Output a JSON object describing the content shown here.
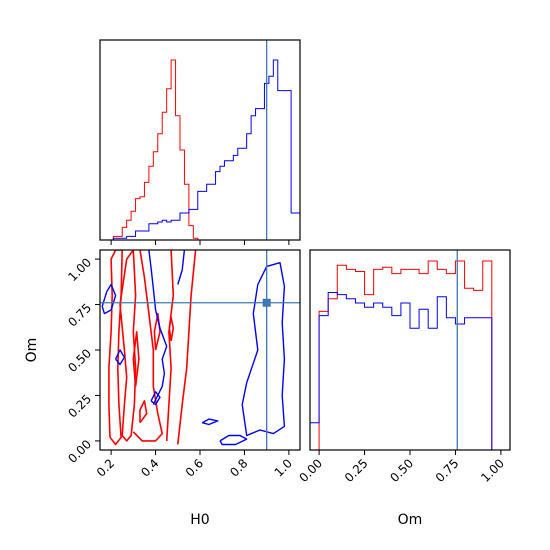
{
  "chart_data": {
    "type": "corner",
    "parameters": [
      "H0",
      "Om"
    ],
    "axis_labels": {
      "H0": "H0",
      "Om": "Om"
    },
    "truth": {
      "H0": 0.9,
      "Om": 0.76
    },
    "colors": {
      "series_a": "#ff0000",
      "series_b": "#0000ff",
      "truth": "#3b7ab5"
    },
    "H0_range": [
      0.15,
      1.05
    ],
    "Om_range": [
      -0.05,
      1.05
    ],
    "Om_hist_xrange": [
      -0.05,
      1.05
    ],
    "H0_ticks": [
      0.2,
      0.4,
      0.6,
      0.8,
      1.0
    ],
    "H0_tick_labels": [
      "0.2",
      "0.4",
      "0.6",
      "0.8",
      "1.0"
    ],
    "Om_ticks": [
      0.0,
      0.25,
      0.5,
      0.75,
      1.0
    ],
    "Om_tick_labels": [
      "0.00",
      "0.25",
      "0.50",
      "0.75",
      "1.00"
    ],
    "hist_H0": {
      "bins": [
        0.15,
        0.17,
        0.19,
        0.21,
        0.23,
        0.25,
        0.27,
        0.29,
        0.31,
        0.33,
        0.35,
        0.37,
        0.39,
        0.41,
        0.43,
        0.45,
        0.47,
        0.49,
        0.51,
        0.53,
        0.55,
        0.57,
        0.59,
        0.61,
        0.63,
        0.65,
        0.67,
        0.69,
        0.71,
        0.73,
        0.75,
        0.77,
        0.79,
        0.81,
        0.83,
        0.85,
        0.87,
        0.89,
        0.91,
        0.93,
        0.95,
        0.97,
        0.99,
        1.01,
        1.03,
        1.05
      ],
      "series_a": [
        0,
        0,
        0,
        0.02,
        0.02,
        0.07,
        0.11,
        0.16,
        0.23,
        0.24,
        0.32,
        0.41,
        0.49,
        0.59,
        0.71,
        0.84,
        1.0,
        0.69,
        0.5,
        0.31,
        0.08,
        0.01,
        0,
        0,
        0,
        0,
        0,
        0,
        0,
        0,
        0,
        0,
        0,
        0,
        0,
        0,
        0,
        0,
        0,
        0,
        0,
        0,
        0,
        0,
        0
      ],
      "series_b": [
        0,
        0,
        0,
        0.01,
        0.01,
        0.01,
        0.02,
        0.02,
        0.05,
        0.05,
        0.05,
        0.09,
        0.09,
        0.1,
        0.11,
        0.1,
        0.11,
        0.11,
        0.15,
        0.15,
        0.17,
        0.17,
        0.27,
        0.27,
        0.31,
        0.31,
        0.38,
        0.41,
        0.44,
        0.44,
        0.47,
        0.51,
        0.51,
        0.59,
        0.69,
        0.73,
        0.73,
        0.87,
        0.91,
        1.0,
        0.83,
        0.83,
        0.83,
        0.15,
        0.15
      ]
    },
    "hist_Om": {
      "bins": [
        -0.05,
        0.0,
        0.05,
        0.1,
        0.15,
        0.2,
        0.25,
        0.3,
        0.35,
        0.4,
        0.45,
        0.5,
        0.55,
        0.6,
        0.65,
        0.7,
        0.75,
        0.8,
        0.85,
        0.9,
        0.95,
        1.0
      ],
      "series_a": [
        0,
        0.66,
        0.72,
        0.88,
        0.86,
        0.85,
        0.74,
        0.86,
        0.87,
        0.84,
        0.86,
        0.86,
        0.84,
        0.9,
        0.86,
        0.84,
        0.9,
        0.77,
        0.76,
        0.9,
        0.0
      ],
      "series_b": [
        0.13,
        0.64,
        0.75,
        0.74,
        0.72,
        0.7,
        0.68,
        0.7,
        0.68,
        0.64,
        0.7,
        0.58,
        0.67,
        0.58,
        0.73,
        0.63,
        0.6,
        0.63,
        0.63,
        0.63,
        0.0
      ]
    },
    "contours": {
      "series_a": [
        [
          [
            0.195,
            0.02
          ],
          [
            0.19,
            0.2
          ],
          [
            0.19,
            0.4
          ],
          [
            0.2,
            0.6
          ],
          [
            0.205,
            0.8
          ],
          [
            0.2,
            1.0
          ],
          [
            0.22,
            1.05
          ],
          [
            0.25,
            1.05
          ],
          [
            0.245,
            0.8
          ],
          [
            0.235,
            0.6
          ],
          [
            0.23,
            0.4
          ],
          [
            0.235,
            0.2
          ],
          [
            0.245,
            0.02
          ],
          [
            0.22,
            -0.02
          ],
          [
            0.195,
            0.02
          ]
        ],
        [
          [
            0.25,
            0.03
          ],
          [
            0.26,
            0.2
          ],
          [
            0.27,
            0.35
          ],
          [
            0.26,
            0.5
          ],
          [
            0.24,
            0.75
          ],
          [
            0.27,
            1.0
          ],
          [
            0.3,
            1.05
          ],
          [
            0.31,
            0.8
          ],
          [
            0.3,
            0.6
          ],
          [
            0.31,
            0.4
          ],
          [
            0.305,
            0.2
          ],
          [
            0.29,
            0.03
          ],
          [
            0.27,
            0.0
          ],
          [
            0.25,
            0.03
          ]
        ],
        [
          [
            0.3,
            0.05
          ],
          [
            0.34,
            0.0
          ],
          [
            0.4,
            0.0
          ],
          [
            0.43,
            0.04
          ],
          [
            0.41,
            0.15
          ],
          [
            0.39,
            0.3
          ],
          [
            0.39,
            0.5
          ],
          [
            0.37,
            0.7
          ],
          [
            0.35,
            0.9
          ],
          [
            0.33,
            1.05
          ]
        ],
        [
          [
            0.45,
            0.0
          ],
          [
            0.46,
            0.2
          ],
          [
            0.47,
            0.4
          ],
          [
            0.46,
            0.6
          ],
          [
            0.48,
            0.8
          ],
          [
            0.47,
            1.05
          ]
        ],
        [
          [
            0.5,
            -0.02
          ],
          [
            0.52,
            0.2
          ],
          [
            0.54,
            0.4
          ],
          [
            0.55,
            0.6
          ],
          [
            0.56,
            0.8
          ],
          [
            0.58,
            1.05
          ]
        ],
        [
          [
            0.31,
            0.3
          ],
          [
            0.325,
            0.45
          ],
          [
            0.315,
            0.6
          ],
          [
            0.3,
            0.45
          ],
          [
            0.31,
            0.3
          ]
        ],
        [
          [
            0.4,
            0.5
          ],
          [
            0.42,
            0.6
          ],
          [
            0.41,
            0.7
          ],
          [
            0.395,
            0.6
          ],
          [
            0.4,
            0.5
          ]
        ],
        [
          [
            0.47,
            0.55
          ],
          [
            0.48,
            0.62
          ],
          [
            0.47,
            0.68
          ],
          [
            0.462,
            0.62
          ],
          [
            0.47,
            0.55
          ]
        ],
        [
          [
            0.33,
            0.1
          ],
          [
            0.36,
            0.15
          ],
          [
            0.35,
            0.22
          ],
          [
            0.33,
            0.17
          ],
          [
            0.33,
            0.1
          ]
        ]
      ],
      "series_b": [
        [
          [
            0.86,
            0.86
          ],
          [
            0.9,
            0.96
          ],
          [
            0.96,
            0.98
          ],
          [
            0.98,
            0.85
          ],
          [
            0.97,
            0.65
          ],
          [
            0.98,
            0.45
          ],
          [
            0.97,
            0.25
          ],
          [
            0.98,
            0.08
          ],
          [
            0.93,
            0.04
          ],
          [
            0.87,
            0.06
          ],
          [
            0.81,
            0.03
          ],
          [
            0.79,
            0.2
          ],
          [
            0.81,
            0.32
          ],
          [
            0.86,
            0.5
          ],
          [
            0.84,
            0.7
          ],
          [
            0.86,
            0.86
          ]
        ],
        [
          [
            0.61,
            0.1
          ],
          [
            0.64,
            0.12
          ],
          [
            0.68,
            0.11
          ],
          [
            0.64,
            0.09
          ],
          [
            0.61,
            0.1
          ]
        ],
        [
          [
            0.5,
            0.86
          ],
          [
            0.52,
            0.94
          ],
          [
            0.53,
            1.05
          ]
        ],
        [
          [
            0.37,
            1.05
          ],
          [
            0.38,
            0.95
          ],
          [
            0.39,
            0.84
          ],
          [
            0.4,
            0.72
          ],
          [
            0.42,
            0.62
          ],
          [
            0.45,
            0.52
          ],
          [
            0.43,
            0.45
          ],
          [
            0.44,
            0.37
          ],
          [
            0.43,
            0.3
          ],
          [
            0.39,
            0.2
          ]
        ],
        [
          [
            0.16,
            0.74
          ],
          [
            0.18,
            0.82
          ],
          [
            0.2,
            0.86
          ],
          [
            0.22,
            0.8
          ],
          [
            0.2,
            0.72
          ],
          [
            0.17,
            0.7
          ],
          [
            0.16,
            0.74
          ]
        ],
        [
          [
            0.22,
            0.45
          ],
          [
            0.24,
            0.5
          ],
          [
            0.26,
            0.46
          ],
          [
            0.24,
            0.42
          ],
          [
            0.22,
            0.45
          ]
        ],
        [
          [
            0.38,
            0.22
          ],
          [
            0.4,
            0.27
          ],
          [
            0.42,
            0.24
          ],
          [
            0.4,
            0.2
          ],
          [
            0.38,
            0.22
          ]
        ],
        [
          [
            0.69,
            0.0
          ],
          [
            0.73,
            0.03
          ],
          [
            0.78,
            0.03
          ],
          [
            0.81,
            0.01
          ],
          [
            0.76,
            -0.02
          ],
          [
            0.7,
            -0.02
          ],
          [
            0.69,
            0.0
          ]
        ]
      ]
    }
  }
}
